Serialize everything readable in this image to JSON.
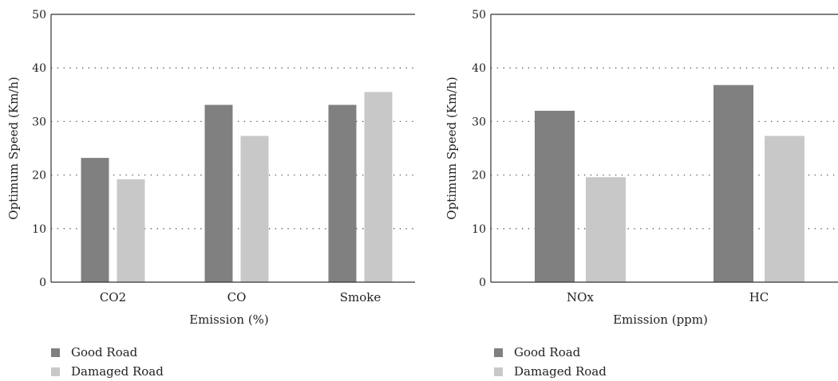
{
  "chart_data": [
    {
      "type": "bar",
      "categories": [
        "CO2",
        "CO",
        "Smoke"
      ],
      "series": [
        {
          "name": "Good Road",
          "values": [
            23.2,
            33.1,
            33.1
          ],
          "color": "#808080"
        },
        {
          "name": "Damaged Road",
          "values": [
            19.2,
            27.3,
            35.5
          ],
          "color": "#c8c8c8"
        }
      ],
      "title": "",
      "xlabel": "Emission (%)",
      "ylabel": "Optimum Speed (Km/h)",
      "ylim": [
        0,
        50
      ],
      "yticks": [
        "0",
        "10",
        "20",
        "30",
        "40",
        "50"
      ],
      "grid": "horizontal dotted",
      "legend": "bottom-left"
    },
    {
      "type": "bar",
      "categories": [
        "NOx",
        "HC"
      ],
      "series": [
        {
          "name": "Good Road",
          "values": [
            32.0,
            36.8
          ],
          "color": "#808080"
        },
        {
          "name": "Damaged Road",
          "values": [
            19.6,
            27.3
          ],
          "color": "#c8c8c8"
        }
      ],
      "title": "",
      "xlabel": "Emission (ppm)",
      "ylabel": "Optimum Speed (Km/h)",
      "ylim": [
        0,
        50
      ],
      "yticks": [
        "0",
        "10",
        "20",
        "30",
        "40",
        "50"
      ],
      "grid": "horizontal dotted",
      "legend": "bottom-left"
    }
  ]
}
